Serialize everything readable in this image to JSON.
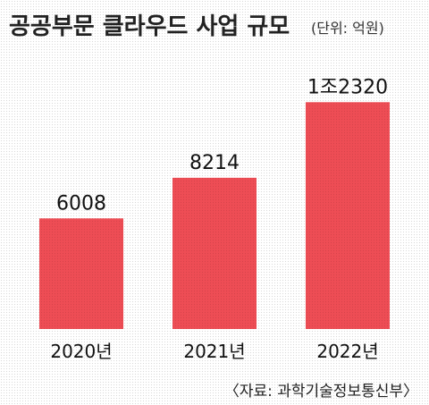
{
  "chart_data": {
    "type": "bar",
    "title": "공공부문 클라우드 사업 규모",
    "unit": "(단위: 억원)",
    "categories": [
      "2020년",
      "2021년",
      "2022년"
    ],
    "values": [
      6008,
      8214,
      12320
    ],
    "value_labels": [
      "6008",
      "8214",
      "1조2320"
    ],
    "ylim": [
      0,
      13500
    ],
    "grid": false,
    "source": "〈자료: 과학기술정보통신부〉",
    "bar_color": "#ee4d55"
  }
}
